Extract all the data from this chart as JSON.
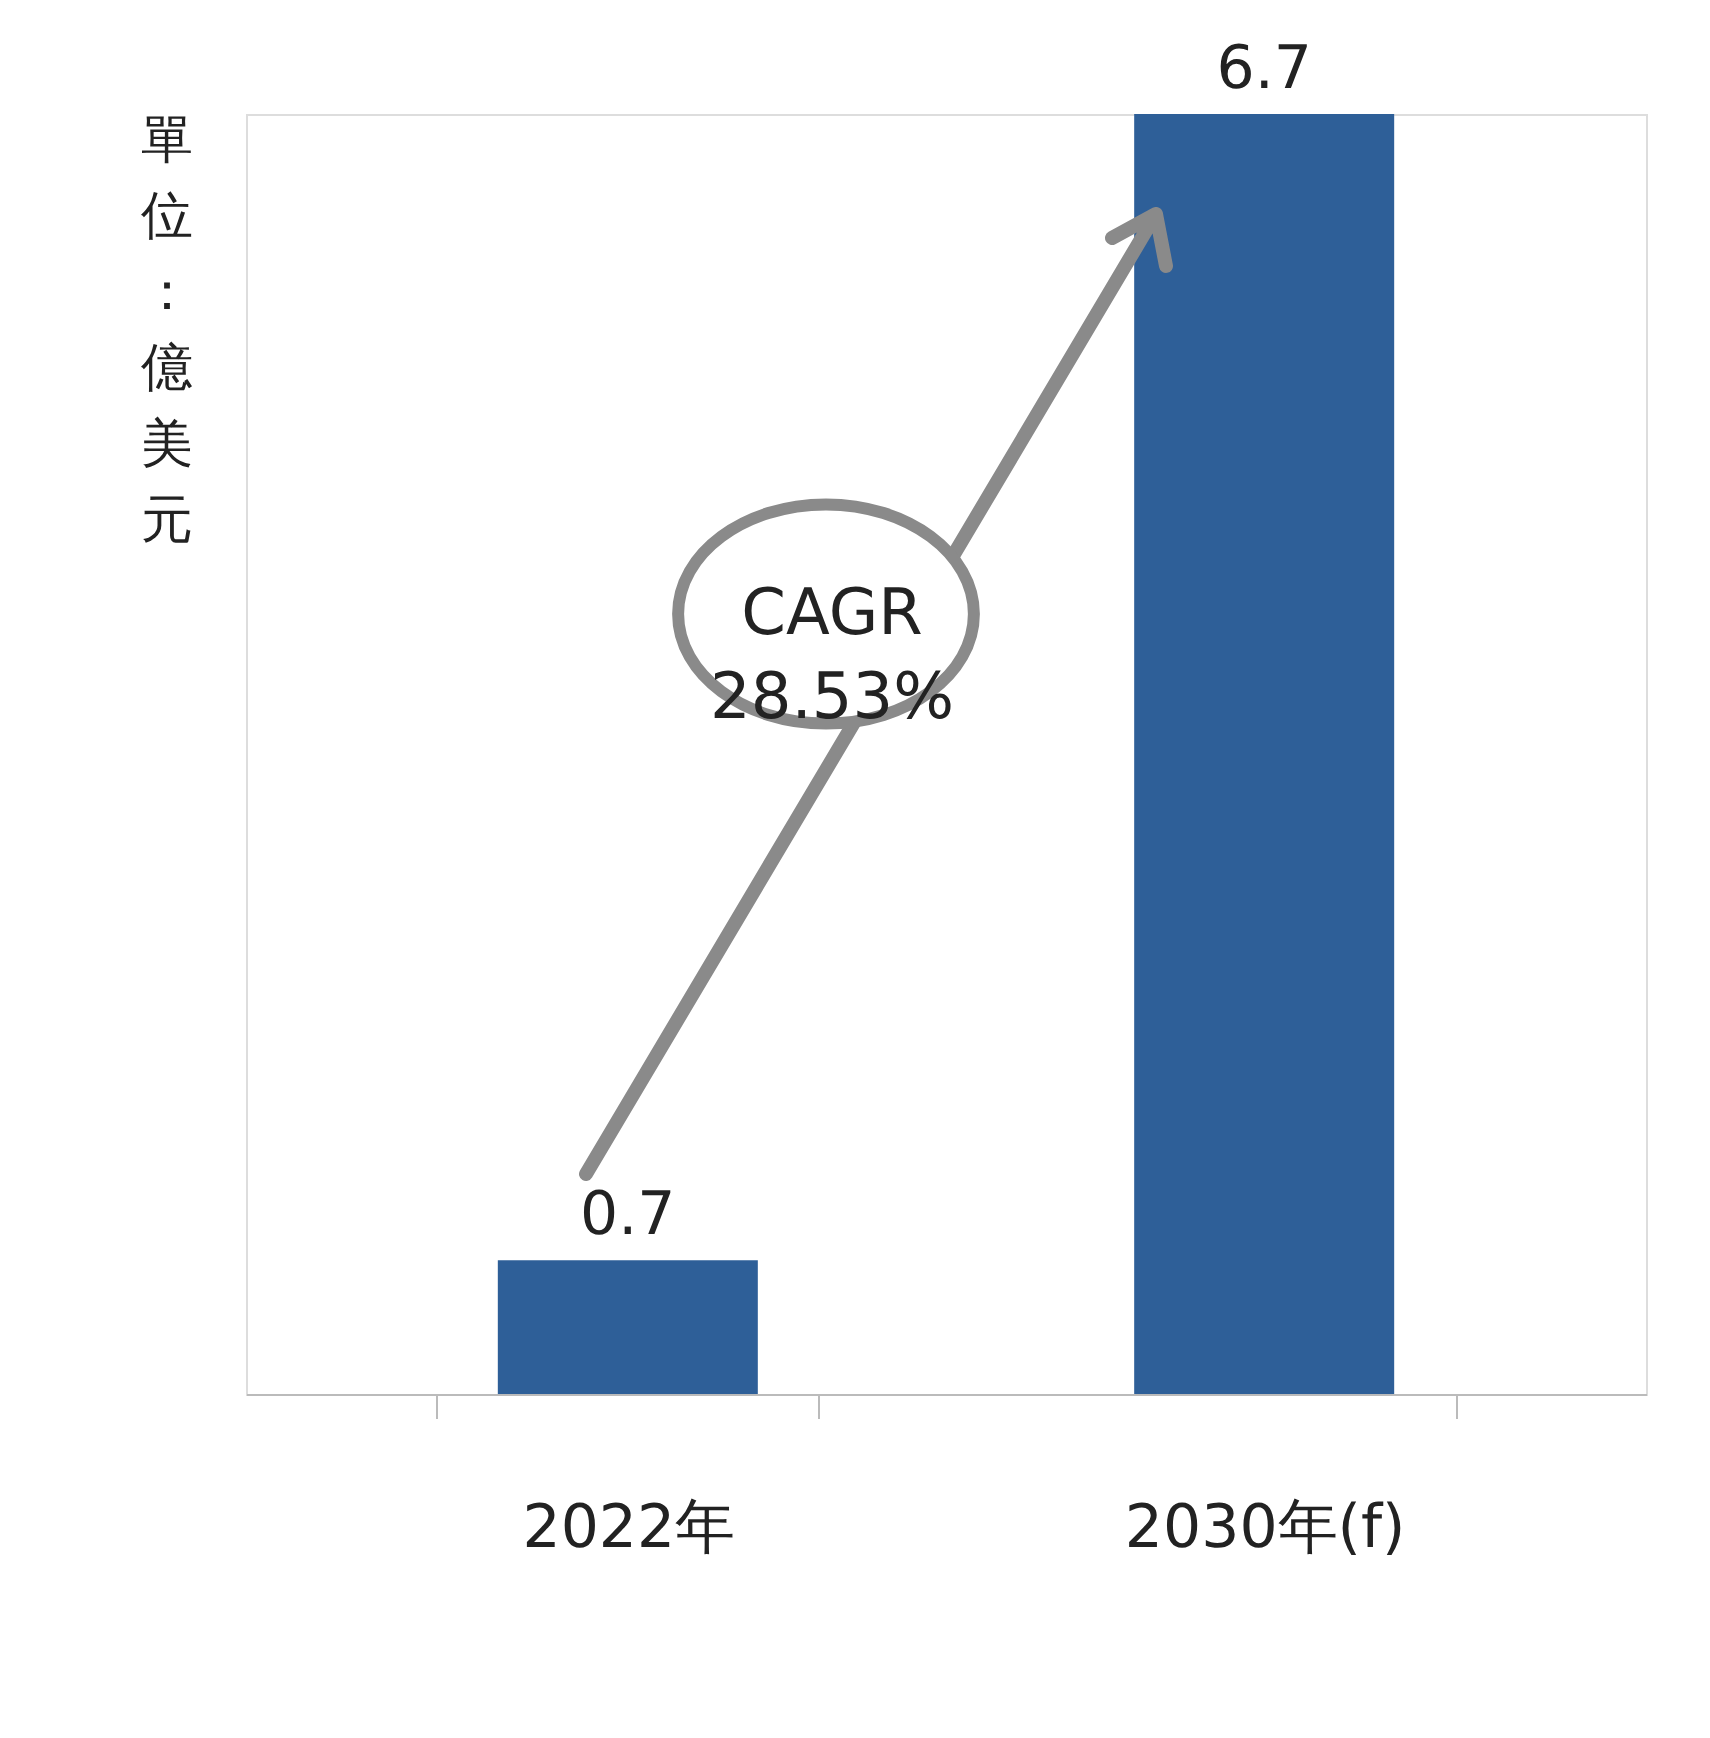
{
  "chart_data": {
    "type": "bar",
    "categories": [
      "2022年",
      "2030年(f)"
    ],
    "values": [
      0.7,
      6.7
    ],
    "color": "#2e5f98",
    "ylabel": "單位：億美元",
    "data_labels": true,
    "annotations": [
      "CAGR\n28.53%"
    ],
    "grid": false
  }
}
